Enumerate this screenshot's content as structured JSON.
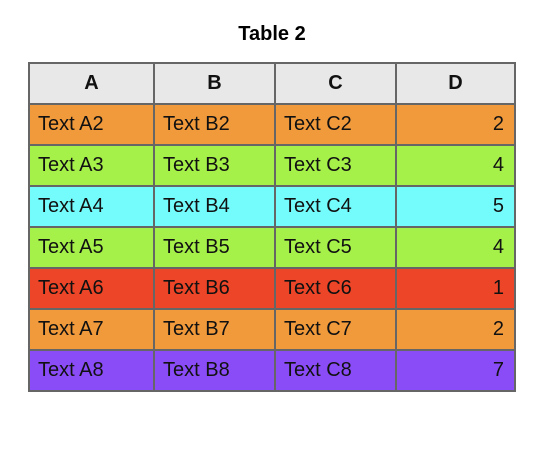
{
  "title": "Table 2",
  "table": {
    "headers": [
      "A",
      "B",
      "C",
      "D"
    ],
    "rows": [
      {
        "cells": [
          "Text A2",
          "Text B2",
          "Text C2",
          "2"
        ],
        "color": "#f09a3c"
      },
      {
        "cells": [
          "Text A3",
          "Text B3",
          "Text C3",
          "4"
        ],
        "color": "#a6f04a"
      },
      {
        "cells": [
          "Text A4",
          "Text B4",
          "Text C4",
          "5"
        ],
        "color": "#74fcfd"
      },
      {
        "cells": [
          "Text A5",
          "Text B5",
          "Text C5",
          "4"
        ],
        "color": "#a6f04a"
      },
      {
        "cells": [
          "Text A6",
          "Text B6",
          "Text C6",
          "1"
        ],
        "color": "#ec4528"
      },
      {
        "cells": [
          "Text A7",
          "Text B7",
          "Text C7",
          "2"
        ],
        "color": "#f09a3c"
      },
      {
        "cells": [
          "Text A8",
          "Text B8",
          "Text C8",
          "7"
        ],
        "color": "#8a4cf7"
      }
    ]
  }
}
